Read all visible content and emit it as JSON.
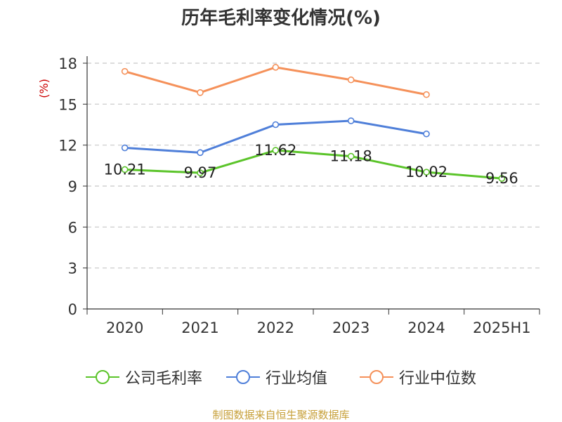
{
  "title": "历年毛利率变化情况(%)",
  "source": "制图数据来自恒生聚源数据库",
  "chart_data": {
    "type": "line",
    "title": "历年毛利率变化情况(%)",
    "xlabel": "",
    "ylabel": "(%)",
    "categories": [
      "2020",
      "2021",
      "2022",
      "2023",
      "2024",
      "2025H1"
    ],
    "yticks": [
      0,
      3,
      6,
      9,
      12,
      15,
      18
    ],
    "ylim": [
      0,
      18
    ],
    "grid": true,
    "legend": "bottom",
    "series": [
      {
        "name": "公司毛利率",
        "color": "#5bc42a",
        "values": [
          10.21,
          9.97,
          11.62,
          11.18,
          10.02,
          9.56
        ],
        "labels": [
          "10.21",
          "9.97",
          "11.62",
          "11.18",
          "10.02",
          "9.56"
        ]
      },
      {
        "name": "行业均值",
        "color": "#4f7fd9",
        "values": [
          11.8,
          11.45,
          13.5,
          13.78,
          12.82,
          null
        ]
      },
      {
        "name": "行业中位数",
        "color": "#f5915a",
        "values": [
          17.4,
          15.85,
          17.7,
          16.78,
          15.7,
          null
        ]
      }
    ]
  }
}
